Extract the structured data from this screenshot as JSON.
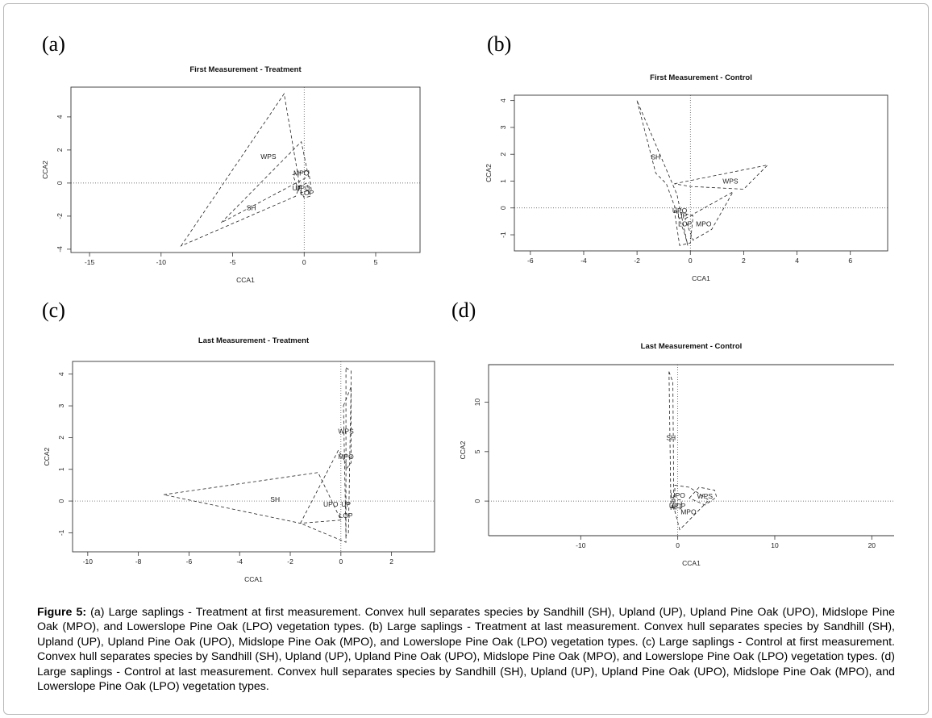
{
  "panel_letters": [
    "(a)",
    "(b)",
    "(c)",
    "(d)"
  ],
  "caption": {
    "label": "Figure 5:",
    "text": " (a) Large saplings - Treatment at first measurement. Convex hull separates species by Sandhill (SH), Upland (UP), Upland Pine Oak (UPO), Midslope Pine Oak (MPO), and Lowerslope Pine Oak (LPO) vegetation types. (b) Large saplings - Treatment at last measurement. Convex hull separates species by Sandhill (SH), Upland (UP), Upland Pine Oak (UPO), Midslope Pine Oak (MPO), and Lowerslope Pine Oak (LPO) vegetation types. (c) Large saplings - Control at first measurement. Convex hull separates species by Sandhill (SH), Upland (UP), Upland Pine Oak (UPO), Midslope Pine Oak (MPO), and Lowerslope Pine Oak (LPO) vegetation types. (d)   Large saplings - Control at last measurement. Convex hull separates species by Sandhill (SH), Upland (UP), Upland Pine Oak (UPO), Midslope Pine Oak (MPO), and Lowerslope Pine Oak (LPO) vegetation types."
  },
  "chart_data": [
    {
      "type": "scatter",
      "title": "First Measurement - Treatment",
      "xlabel": "CCA1",
      "ylabel": "CCA2",
      "xlim": [
        -16.3,
        8.1
      ],
      "ylim": [
        -4.2,
        5.8
      ],
      "xticks": [
        -15,
        -10,
        -5,
        0,
        5
      ],
      "yticks": [
        -4,
        -2,
        0,
        2,
        4
      ],
      "reference_lines": {
        "x": 0,
        "y": 0
      },
      "hulls": [
        {
          "name": "SH",
          "points": [
            [
              -8.6,
              -3.8
            ],
            [
              -1.4,
              5.4
            ],
            [
              -0.3,
              -0.2
            ],
            [
              -0.6,
              -0.8
            ]
          ]
        },
        {
          "name": "WPS",
          "points": [
            [
              -5.8,
              -2.4
            ],
            [
              -0.2,
              2.5
            ],
            [
              0.3,
              0.4
            ]
          ]
        },
        {
          "name": "MPO",
          "points": [
            [
              -0.8,
              0.5
            ],
            [
              0.3,
              0.8
            ],
            [
              0.5,
              -0.4
            ],
            [
              -0.3,
              -0.6
            ]
          ]
        },
        {
          "name": "UP",
          "points": [
            [
              -0.4,
              -0.2
            ],
            [
              0.2,
              0.0
            ],
            [
              0.4,
              -0.8
            ],
            [
              0.0,
              -0.9
            ]
          ]
        }
      ],
      "labels": [
        {
          "text": "WPS",
          "x": -2.5,
          "y": 1.6
        },
        {
          "text": "SH",
          "x": -3.7,
          "y": -1.5
        },
        {
          "text": "MPO",
          "x": -0.2,
          "y": 0.6
        },
        {
          "text": "UP",
          "x": -0.5,
          "y": -0.3
        },
        {
          "text": "UPO",
          "x": -0.1,
          "y": -0.3
        },
        {
          "text": "LOP",
          "x": 0.2,
          "y": -0.6
        }
      ]
    },
    {
      "type": "scatter",
      "title": "First Measurement - Control",
      "xlabel": "CCA1",
      "ylabel": "CCA2",
      "xlim": [
        -6.6,
        7.4
      ],
      "ylim": [
        -1.6,
        4.2
      ],
      "xticks": [
        -6,
        -4,
        -2,
        0,
        2,
        4,
        6
      ],
      "yticks": [
        -1,
        0,
        1,
        2,
        3,
        4
      ],
      "reference_lines": {
        "x": 0,
        "y": 0
      },
      "hulls": [
        {
          "name": "SH",
          "points": [
            [
              -2.0,
              4.0
            ],
            [
              -1.3,
              1.3
            ],
            [
              -0.9,
              0.9
            ],
            [
              -0.2,
              -1.0
            ],
            [
              -0.1,
              -1.4
            ],
            [
              -0.5,
              0.5
            ]
          ]
        },
        {
          "name": "WPS",
          "points": [
            [
              -0.6,
              0.9
            ],
            [
              2.9,
              1.6
            ],
            [
              2.0,
              0.7
            ],
            [
              0.0,
              0.8
            ]
          ]
        },
        {
          "name": "MPO",
          "points": [
            [
              -0.2,
              -0.4
            ],
            [
              1.6,
              0.6
            ],
            [
              0.8,
              -0.8
            ],
            [
              0.1,
              -1.2
            ]
          ]
        },
        {
          "name": "UP",
          "points": [
            [
              -0.6,
              -0.1
            ],
            [
              0.1,
              -0.3
            ],
            [
              0.0,
              -1.3
            ],
            [
              -0.4,
              -1.4
            ]
          ]
        }
      ],
      "labels": [
        {
          "text": "SH",
          "x": -1.3,
          "y": 1.9
        },
        {
          "text": "WPS",
          "x": 1.5,
          "y": 1.0
        },
        {
          "text": "UPO",
          "x": -0.4,
          "y": -0.1
        },
        {
          "text": "UP",
          "x": -0.3,
          "y": -0.3
        },
        {
          "text": "LOP",
          "x": -0.2,
          "y": -0.6
        },
        {
          "text": "MPO",
          "x": 0.5,
          "y": -0.6
        }
      ]
    },
    {
      "type": "scatter",
      "title": "Last Measurement - Treatment",
      "xlabel": "CCA1",
      "ylabel": "CCA2",
      "xlim": [
        -10.6,
        3.7
      ],
      "ylim": [
        -1.6,
        4.4
      ],
      "xticks": [
        -10,
        -8,
        -6,
        -4,
        -2,
        0,
        2
      ],
      "yticks": [
        -1,
        0,
        1,
        2,
        3,
        4
      ],
      "reference_lines": {
        "x": 0,
        "y": 0
      },
      "hulls": [
        {
          "name": "SH",
          "points": [
            [
              -7.0,
              0.2
            ],
            [
              -0.9,
              0.9
            ],
            [
              0.0,
              -0.6
            ],
            [
              -1.6,
              -0.7
            ]
          ]
        },
        {
          "name": "WPS",
          "points": [
            [
              0.2,
              4.2
            ],
            [
              0.4,
              4.1
            ],
            [
              0.4,
              1.2
            ],
            [
              0.2,
              1.0
            ]
          ]
        },
        {
          "name": "MPO",
          "points": [
            [
              -1.6,
              -0.7
            ],
            [
              -0.1,
              1.6
            ],
            [
              0.2,
              1.2
            ],
            [
              0.2,
              -1.3
            ]
          ]
        },
        {
          "name": "UP",
          "points": [
            [
              0.1,
              3.0
            ],
            [
              0.4,
              3.6
            ],
            [
              0.3,
              -1.0
            ],
            [
              0.2,
              -1.1
            ]
          ]
        }
      ],
      "labels": [
        {
          "text": "WPS",
          "x": 0.2,
          "y": 2.2
        },
        {
          "text": "MPO",
          "x": 0.2,
          "y": 1.4
        },
        {
          "text": "SH",
          "x": -2.6,
          "y": 0.05
        },
        {
          "text": "UPO",
          "x": -0.4,
          "y": -0.1
        },
        {
          "text": "UP",
          "x": 0.2,
          "y": -0.1
        },
        {
          "text": "LOP",
          "x": 0.2,
          "y": -0.45
        }
      ]
    },
    {
      "type": "scatter",
      "title": "Last Measurement - Control",
      "xlabel": "CCA1",
      "ylabel": "CCA2",
      "xlim": [
        -19.5,
        22.3
      ],
      "ylim": [
        -3.5,
        13.8
      ],
      "xticks": [
        -10,
        0,
        10,
        20
      ],
      "yticks": [
        0,
        5,
        10
      ],
      "reference_lines": {
        "x": 0,
        "y": 0
      },
      "hulls": [
        {
          "name": "SH",
          "points": [
            [
              -0.9,
              13.1
            ],
            [
              -0.5,
              12.0
            ],
            [
              -0.4,
              -0.8
            ],
            [
              -0.7,
              -0.9
            ]
          ]
        },
        {
          "name": "WPS",
          "points": [
            [
              1.2,
              0.3
            ],
            [
              2.2,
              1.4
            ],
            [
              3.8,
              1.1
            ],
            [
              4.0,
              0.4
            ],
            [
              2.8,
              -0.4
            ]
          ]
        },
        {
          "name": "MPO",
          "points": [
            [
              -0.3,
              1.6
            ],
            [
              1.2,
              1.4
            ],
            [
              3.2,
              0.1
            ],
            [
              0.2,
              -2.9
            ],
            [
              -0.3,
              -1.0
            ]
          ]
        },
        {
          "name": "UP",
          "points": [
            [
              -0.6,
              0.2
            ],
            [
              0.4,
              0.1
            ],
            [
              0.3,
              -0.8
            ],
            [
              -0.6,
              -0.8
            ]
          ]
        }
      ],
      "labels": [
        {
          "text": "SH",
          "x": -0.7,
          "y": 6.4
        },
        {
          "text": "UPO",
          "x": 0.0,
          "y": 0.6
        },
        {
          "text": "WPS",
          "x": 2.8,
          "y": 0.5
        },
        {
          "text": "UP",
          "x": -0.4,
          "y": -0.5
        },
        {
          "text": "LOP",
          "x": 0.1,
          "y": -0.5
        },
        {
          "text": "MPO",
          "x": 1.1,
          "y": -1.1
        }
      ]
    }
  ]
}
